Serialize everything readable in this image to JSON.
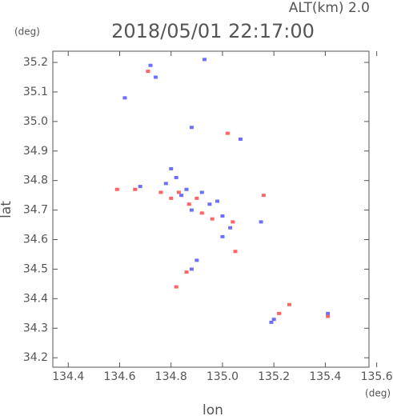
{
  "chart_data": {
    "type": "scatter",
    "title": "2018/05/01 22:17:00",
    "subtitle": "ALT(km) 2.0",
    "x_label": "lon",
    "y_label": "lat",
    "x_unit": "(deg)",
    "y_unit": "(deg)",
    "xlim": [
      134.34,
      135.57
    ],
    "ylim": [
      34.168,
      35.238
    ],
    "xticks": [
      134.4,
      134.6,
      134.8,
      {
        "value": 135,
        "label": "135.0"
      },
      135.2,
      135.4,
      135.6
    ],
    "yticks": [
      34.2,
      34.3,
      34.4,
      34.5,
      34.6,
      34.7,
      34.8,
      34.9,
      {
        "value": 35,
        "label": "35.0"
      },
      35.1,
      35.2
    ],
    "series": [
      {
        "color": "#6e6eff",
        "x": [
          134.72,
          134.74,
          134.93,
          134.62,
          134.88,
          135.07,
          134.8,
          134.82,
          134.78,
          134.86,
          134.92,
          134.98,
          134.88,
          135.0,
          135.03,
          135.0,
          134.9,
          134.88,
          135.2,
          135.19,
          135.41,
          135.15,
          134.68,
          134.95,
          134.84
        ],
        "y": [
          35.19,
          35.15,
          35.21,
          35.08,
          34.98,
          34.94,
          34.84,
          34.81,
          34.79,
          34.77,
          34.76,
          34.73,
          34.7,
          34.68,
          34.64,
          34.61,
          34.53,
          34.5,
          34.33,
          34.32,
          34.35,
          34.66,
          34.78,
          34.72,
          34.75
        ]
      },
      {
        "color": "#ff6464",
        "x": [
          134.71,
          135.02,
          134.59,
          134.66,
          134.76,
          134.83,
          134.9,
          134.96,
          135.04,
          134.86,
          134.82,
          135.22,
          135.26,
          135.41,
          135.16,
          135.05,
          134.8,
          134.87,
          134.92
        ],
        "y": [
          35.17,
          34.96,
          34.77,
          34.77,
          34.76,
          34.76,
          34.74,
          34.67,
          34.66,
          34.49,
          34.44,
          34.35,
          34.38,
          34.34,
          34.75,
          34.56,
          34.74,
          34.72,
          34.69
        ]
      }
    ]
  }
}
